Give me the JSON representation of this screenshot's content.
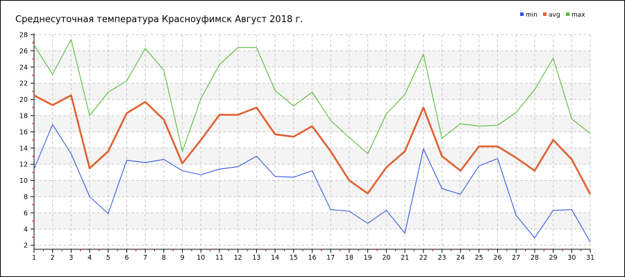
{
  "chart_data": {
    "type": "line",
    "title": "Среднесуточная температура Красноуфимск  Август 2018 г.",
    "xlabel": "",
    "ylabel": "",
    "x": [
      1,
      2,
      3,
      4,
      5,
      6,
      7,
      8,
      9,
      10,
      11,
      12,
      13,
      14,
      15,
      16,
      17,
      18,
      19,
      20,
      21,
      22,
      23,
      24,
      25,
      26,
      27,
      28,
      29,
      30,
      31
    ],
    "xlim": [
      1,
      31
    ],
    "ylim": [
      1.5,
      28
    ],
    "yticks": [
      2,
      4,
      6,
      8,
      10,
      12,
      14,
      16,
      18,
      20,
      22,
      24,
      26,
      28
    ],
    "grid": true,
    "legend": "top-right",
    "series": [
      {
        "name": "min",
        "color": "#3355dd",
        "values": [
          11.4,
          16.9,
          13.3,
          8.0,
          5.9,
          12.5,
          12.2,
          12.6,
          11.2,
          10.7,
          11.4,
          11.7,
          13.0,
          10.5,
          10.4,
          11.2,
          6.4,
          6.2,
          4.7,
          6.3,
          3.5,
          13.9,
          9.0,
          8.3,
          11.8,
          12.7,
          5.7,
          2.9,
          6.3,
          6.4,
          2.4
        ]
      },
      {
        "name": "avg",
        "color": "#e06030",
        "values": [
          20.5,
          19.3,
          20.5,
          11.5,
          13.6,
          18.3,
          19.7,
          17.5,
          12.1,
          15.0,
          18.1,
          18.1,
          19.0,
          15.7,
          15.4,
          16.7,
          13.6,
          10.0,
          8.4,
          11.6,
          13.6,
          19.0,
          13.0,
          11.2,
          14.2,
          14.2,
          12.8,
          11.2,
          15.0,
          12.6,
          8.3
        ]
      },
      {
        "name": "max",
        "color": "#55bb33",
        "values": [
          26.7,
          23.1,
          27.4,
          18.0,
          20.9,
          22.3,
          26.3,
          23.6,
          13.6,
          20.1,
          24.3,
          26.4,
          26.4,
          21.1,
          19.2,
          20.9,
          17.4,
          15.3,
          13.3,
          18.2,
          20.6,
          25.6,
          15.2,
          17.0,
          16.7,
          16.8,
          18.4,
          21.2,
          25.1,
          17.6,
          15.8
        ]
      }
    ]
  }
}
